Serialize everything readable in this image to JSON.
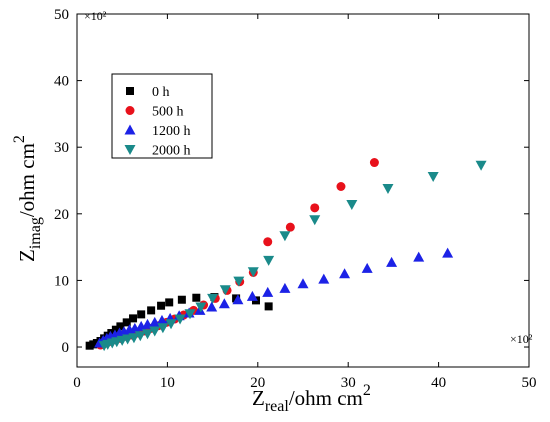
{
  "chart_data": {
    "type": "scatter",
    "title": "",
    "xlabel": {
      "main": "Z",
      "sub": "real",
      "rest": "/ohm cm",
      "sup": "2"
    },
    "ylabel": {
      "main": "Z",
      "sub": "imag",
      "rest": "/ohm cm",
      "sup": "2"
    },
    "x_multiplier": "×10²",
    "y_multiplier": "×10²",
    "xlim": [
      0,
      50
    ],
    "ylim": [
      -3,
      50
    ],
    "x_ticks": [
      0,
      10,
      20,
      30,
      40,
      50
    ],
    "y_ticks": [
      0,
      10,
      20,
      30,
      40,
      50
    ],
    "grid": false,
    "legend_position": "top-left",
    "series": [
      {
        "name": "0 h",
        "marker": "square",
        "color": "#000000",
        "x": [
          1.4,
          1.8,
          2.2,
          2.6,
          3.0,
          3.4,
          3.8,
          4.3,
          4.8,
          5.5,
          6.2,
          7.1,
          8.2,
          9.3,
          10.2,
          11.6,
          13.2,
          15.2,
          17.6,
          19.8,
          21.2
        ],
        "y": [
          0.2,
          0.4,
          0.6,
          0.9,
          1.3,
          1.7,
          2.1,
          2.6,
          3.1,
          3.7,
          4.3,
          4.9,
          5.5,
          6.2,
          6.7,
          7.1,
          7.4,
          7.5,
          7.3,
          7.0,
          6.1
        ]
      },
      {
        "name": "500 h",
        "marker": "circle",
        "color": "#e8111b",
        "x": [
          2.6,
          3.0,
          3.4,
          3.8,
          4.3,
          4.8,
          5.4,
          6.0,
          6.7,
          7.4,
          8.2,
          9.0,
          9.9,
          10.8,
          11.8,
          12.9,
          14.0,
          15.3,
          16.6,
          18.0,
          19.5,
          21.1,
          23.6,
          26.3,
          29.2,
          32.9
        ],
        "y": [
          0.3,
          0.5,
          0.7,
          0.9,
          1.1,
          1.3,
          1.6,
          1.8,
          2.1,
          2.4,
          2.8,
          3.2,
          3.7,
          4.2,
          4.8,
          5.5,
          6.3,
          7.3,
          8.5,
          9.8,
          11.2,
          15.8,
          18.0,
          20.9,
          24.1,
          27.7
        ]
      },
      {
        "name": "1200 h",
        "marker": "triangle-up",
        "color": "#1c22e6",
        "x": [
          2.5,
          2.9,
          3.3,
          3.7,
          4.2,
          4.7,
          5.2,
          5.8,
          6.4,
          7.1,
          7.8,
          8.6,
          9.4,
          10.3,
          11.3,
          12.4,
          13.6,
          14.9,
          16.3,
          17.8,
          19.4,
          21.1,
          23.0,
          25.0,
          27.3,
          29.6,
          32.1,
          34.8,
          37.8,
          41.0
        ],
        "y": [
          0.6,
          1.0,
          1.3,
          1.6,
          1.8,
          2.1,
          2.3,
          2.6,
          2.8,
          3.1,
          3.4,
          3.7,
          4.0,
          4.3,
          4.7,
          5.1,
          5.5,
          6.0,
          6.5,
          7.1,
          7.6,
          8.2,
          8.8,
          9.5,
          10.2,
          11.0,
          11.8,
          12.7,
          13.5,
          14.1
        ]
      },
      {
        "name": "2000 h",
        "marker": "triangle-down",
        "color": "#1a8a8a",
        "x": [
          3.0,
          3.4,
          3.9,
          4.4,
          5.0,
          5.6,
          6.3,
          7.0,
          7.8,
          8.6,
          9.5,
          10.4,
          11.4,
          12.5,
          13.7,
          15.0,
          16.4,
          17.9,
          19.5,
          21.2,
          23.0,
          26.3,
          30.4,
          34.4,
          39.4,
          44.7
        ],
        "y": [
          0.2,
          0.4,
          0.6,
          0.8,
          1.0,
          1.2,
          1.4,
          1.7,
          2.0,
          2.4,
          2.9,
          3.5,
          4.2,
          5.0,
          6.0,
          7.3,
          8.6,
          9.9,
          11.3,
          13.0,
          16.7,
          19.1,
          21.4,
          23.8,
          25.6,
          27.3
        ]
      }
    ]
  }
}
